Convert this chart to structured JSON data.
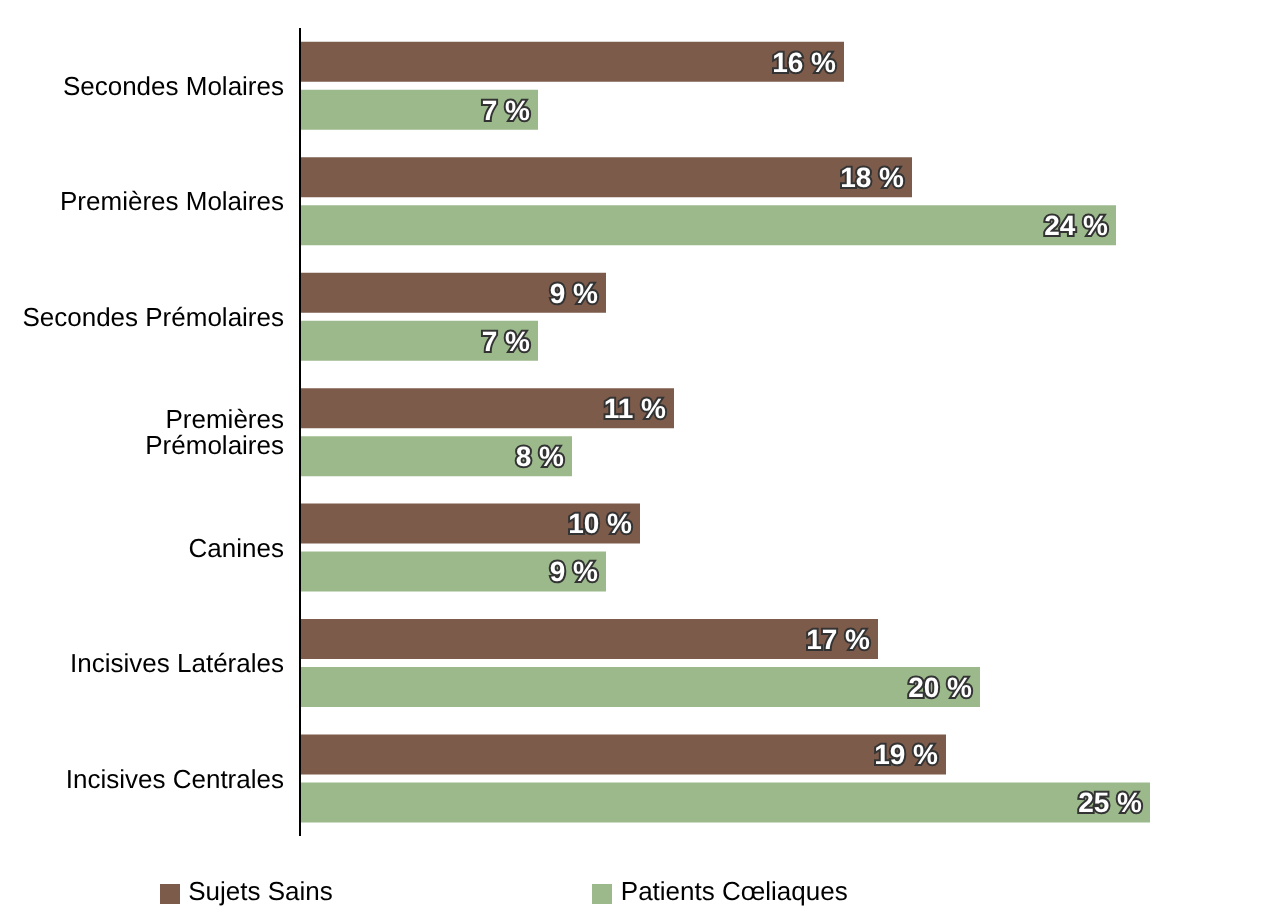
{
  "chart_data": {
    "type": "bar",
    "orientation": "horizontal",
    "categories": [
      "Secondes Molaires",
      "Premières Molaires",
      "Secondes Prémolaires",
      "Premières Prémolaires",
      "Canines",
      "Incisives Latérales",
      "Incisives Centrales"
    ],
    "series": [
      {
        "name": "Sujets Sains",
        "color": "#7d5b4b",
        "values": [
          16,
          18,
          9,
          11,
          10,
          17,
          19
        ],
        "value_labels": [
          "16 %",
          "18 %",
          "9 %",
          "11 %",
          "10 %",
          "17 %",
          "19 %"
        ]
      },
      {
        "name": "Patients Cœliaques",
        "color": "#9bb98b",
        "values": [
          7,
          24,
          7,
          8,
          9,
          20,
          25
        ],
        "value_labels": [
          "7 %",
          "24 %",
          "7 %",
          "8 %",
          "9 %",
          "20 %",
          "25 %"
        ]
      }
    ],
    "legend": "bottom",
    "tick_labels": "y"
  }
}
